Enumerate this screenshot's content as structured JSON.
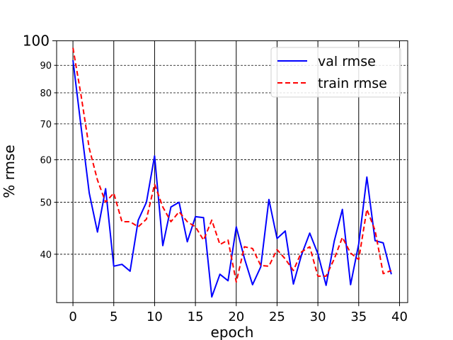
{
  "chart_data": {
    "type": "line",
    "xlabel": "epoch",
    "ylabel": "% rmse",
    "yscale": "log",
    "xlim": [
      -2,
      41
    ],
    "ylim": [
      32.5,
      100
    ],
    "xticks": [
      0,
      5,
      10,
      15,
      20,
      25,
      30,
      35,
      40
    ],
    "yticks_major": [
      100
    ],
    "yticks_minor": [
      40,
      50,
      60,
      70,
      80,
      90
    ],
    "grid": {
      "x": "solid",
      "y": "dashed"
    },
    "legend_position": "top-right",
    "x": [
      0,
      1,
      2,
      3,
      4,
      5,
      6,
      7,
      8,
      9,
      10,
      11,
      12,
      13,
      14,
      15,
      16,
      17,
      18,
      19,
      20,
      21,
      22,
      23,
      24,
      25,
      26,
      27,
      28,
      29,
      30,
      31,
      32,
      33,
      34,
      35,
      36,
      37,
      38,
      39
    ],
    "series": [
      {
        "name": "val rmse",
        "color": "#0000ff",
        "linestyle": "solid",
        "values": [
          92,
          69,
          52,
          44,
          53,
          38,
          38.3,
          37.2,
          46.3,
          50,
          61,
          41.5,
          49,
          50,
          42.2,
          47,
          46.8,
          33.3,
          36.7,
          35.7,
          45,
          39.3,
          35.1,
          37.9,
          50.6,
          42.8,
          44.2,
          35.2,
          39.9,
          43.8,
          40.1,
          35,
          42.3,
          48.5,
          35.1,
          41.8,
          55.7,
          42.4,
          42,
          36.7
        ]
      },
      {
        "name": "train rmse",
        "color": "#ff0000",
        "linestyle": "dashed",
        "values": [
          97,
          79,
          63,
          55,
          50,
          52,
          46,
          46,
          45,
          46.5,
          54,
          49,
          46,
          48,
          46,
          45,
          42.5,
          46.3,
          41.7,
          42.5,
          35.5,
          41.3,
          41,
          38.1,
          38,
          40.8,
          39.2,
          37.3,
          40.4,
          41.3,
          36.4,
          36.4,
          39.2,
          43,
          40.2,
          39.1,
          48.5,
          44.3,
          36.8,
          37.3
        ]
      }
    ]
  }
}
